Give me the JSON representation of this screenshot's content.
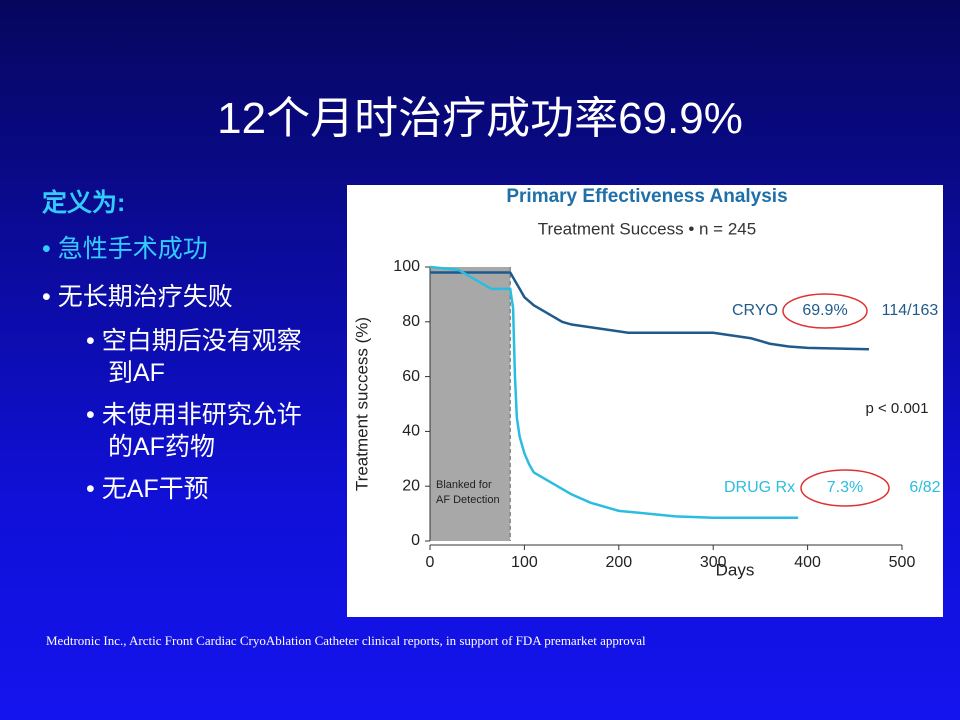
{
  "slide": {
    "title": "12个月时治疗成功率69.9%",
    "heading": "定义为:",
    "bullets": [
      "急性手术成功",
      "无长期治疗失败"
    ],
    "sub_bullets": [
      "空白期后没有观察到AF",
      "未使用非研究允许的AF药物",
      "无AF干预"
    ],
    "footnote": "Medtronic Inc., Arctic Front Cardiac CryoAblation Catheter clinical reports, in support of FDA premarket approval"
  },
  "chart_data": {
    "type": "line",
    "title": "Primary Effectiveness Analysis",
    "subtitle": "Treatment Success • n = 245",
    "x_label": "Days",
    "y_label": "Treatment success (%)",
    "xlim": [
      0,
      500
    ],
    "xticks": [
      0,
      100,
      200,
      300,
      400,
      500
    ],
    "ylim": [
      0,
      100
    ],
    "yticks": [
      0,
      20,
      40,
      60,
      80,
      100
    ],
    "blanked_region": {
      "x": [
        0,
        85
      ],
      "label": [
        "Blanked for",
        "AF Detection"
      ]
    },
    "series": [
      {
        "name": "CRYO",
        "color": "#1e5b8c",
        "rate": "69.9%",
        "count": "114/163",
        "x": [
          0,
          85,
          90,
          95,
          100,
          110,
          120,
          130,
          140,
          150,
          170,
          190,
          210,
          250,
          300,
          340,
          350,
          360,
          380,
          400,
          465
        ],
        "values": [
          98,
          98,
          95,
          92,
          89,
          86,
          84,
          82,
          80,
          79,
          78,
          77,
          76,
          76,
          76,
          74,
          73,
          72,
          71,
          70.5,
          70
        ]
      },
      {
        "name": "DRUG Rx",
        "color": "#2bbde0",
        "rate": "7.3%",
        "count": "6/82",
        "x": [
          0,
          30,
          45,
          55,
          65,
          85,
          88,
          90,
          92,
          95,
          100,
          105,
          110,
          120,
          130,
          150,
          170,
          200,
          260,
          300,
          390
        ],
        "values": [
          100,
          99,
          96,
          94,
          92,
          92,
          85,
          60,
          45,
          38,
          32,
          28,
          25,
          23,
          21,
          17,
          14,
          11,
          9,
          8.5,
          8.5
        ]
      }
    ],
    "p_value": "p < 0.001"
  }
}
